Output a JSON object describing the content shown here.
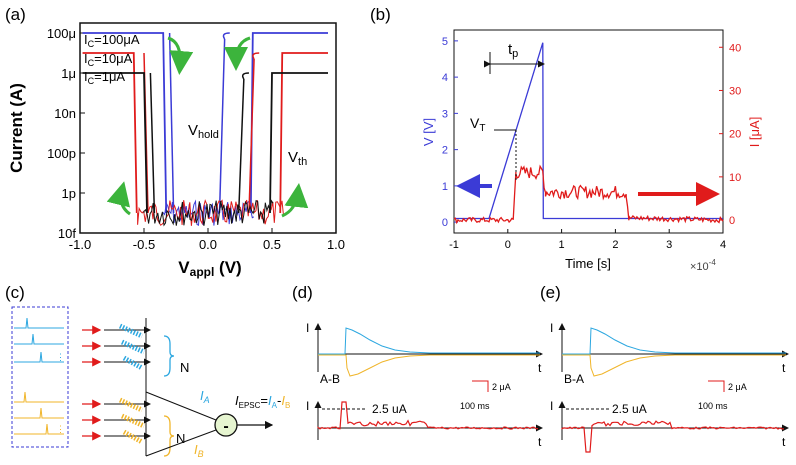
{
  "panel_labels": {
    "a": "(a)",
    "b": "(b)",
    "c": "(c)",
    "d": "(d)",
    "e": "(e)"
  },
  "colors": {
    "blue": "#3b3bd6",
    "red": "#e01b1b",
    "black": "#111111",
    "green": "#3cb43c",
    "cyan": "#2ca7e0",
    "yellow": "#f0b52a"
  },
  "panel_a": {
    "ylabel": "Current (A)",
    "xlabel_main": "V",
    "xlabel_sub": "appl",
    "xlabel_unit": " (V)",
    "legend": [
      {
        "prefix": "I",
        "sub": "C",
        "value": "=100μA"
      },
      {
        "prefix": "I",
        "sub": "C",
        "value": "=10μA"
      },
      {
        "prefix": "I",
        "sub": "C",
        "value": "=1μA"
      }
    ],
    "annotation_vhold": {
      "main": "V",
      "sub": "hold"
    },
    "annotation_vth": {
      "main": "V",
      "sub": "th"
    }
  },
  "panel_b": {
    "ylabel_left": "V [V]",
    "ylabel_right": "I [μA]",
    "xlabel": "Time [s]",
    "x_multiplier": "×10",
    "x_multiplier_exp": "-4",
    "annotation_tp": {
      "main": "t",
      "sub": "p"
    },
    "annotation_vt": {
      "main": "V",
      "sub": "T"
    }
  },
  "panel_c": {
    "label_n_top": "N",
    "label_n_bottom": "N",
    "label_ia": {
      "main": "I",
      "sub": "A"
    },
    "label_ib": {
      "main": "I",
      "sub": "B"
    },
    "equation": {
      "main": "I",
      "sub": "EPSC",
      "rest": "=",
      "a": "I",
      "a_sub": "A",
      "minus": "-",
      "b": "I",
      "b_sub": "B"
    },
    "subtract_symbol": "-"
  },
  "panel_d": {
    "axis_i": "I",
    "axis_t": "t",
    "label": "A-B",
    "scale_current": "2 μA",
    "scale_time": "100 ms",
    "threshold": "2.5 uA"
  },
  "panel_e": {
    "axis_i": "I",
    "axis_t": "t",
    "label": "B-A",
    "scale_current": "2 μA",
    "scale_time": "100 ms",
    "threshold": "2.5 uA"
  },
  "chart_data": [
    {
      "type": "line",
      "panel": "a",
      "title": "",
      "xlabel": "Vappl (V)",
      "ylabel": "Current (A)",
      "x_ticks": [
        "-1.0",
        "-0.5",
        "0.0",
        "0.5",
        "1.0"
      ],
      "y_ticks": [
        "10f",
        "1p",
        "100p",
        "10n",
        "1μ",
        "100μ"
      ],
      "xlim": [
        -1.0,
        1.0
      ],
      "ylim_log10": [
        -14,
        -3.5
      ],
      "grid": false,
      "series": [
        {
          "name": "Ic=100μA",
          "compliance_log10": -4,
          "vth": 0.35,
          "vhold": -0.3,
          "color": "blue"
        },
        {
          "name": "Ic=10μA",
          "compliance_log10": -5,
          "vth": 0.58,
          "vhold": -0.5,
          "color": "red"
        },
        {
          "name": "Ic=1μA",
          "compliance_log10": -6,
          "vth": 0.5,
          "vhold": -0.45,
          "color": "black"
        }
      ]
    },
    {
      "type": "line",
      "panel": "b",
      "title": "",
      "xlabel": "Time [s]",
      "ylabel_left": "V [V]",
      "ylabel_right": "I [μA]",
      "x_ticks": [
        "-1",
        "0",
        "1",
        "2",
        "3",
        "4"
      ],
      "y_ticks_left": [
        "0",
        "1",
        "2",
        "3",
        "4",
        "5"
      ],
      "y_ticks_right": [
        "0",
        "10",
        "20",
        "30",
        "40"
      ],
      "xlim": [
        -1,
        4
      ],
      "ylim_left": [
        -0.3,
        5.3
      ],
      "ylim_right": [
        -3,
        44
      ],
      "series": [
        {
          "name": "V",
          "axis": "left",
          "color": "blue",
          "x": [
            -1,
            -0.35,
            0.65,
            0.66,
            4
          ],
          "y": [
            0.1,
            0.1,
            4.95,
            0.1,
            0.1
          ]
        },
        {
          "name": "I",
          "axis": "right",
          "color": "red",
          "x": [
            -1,
            0.1,
            0.15,
            0.65,
            0.7,
            2.2,
            2.25,
            4
          ],
          "y": [
            0,
            0,
            11,
            11,
            6.5,
            6.5,
            0.5,
            0
          ]
        }
      ]
    }
  ]
}
